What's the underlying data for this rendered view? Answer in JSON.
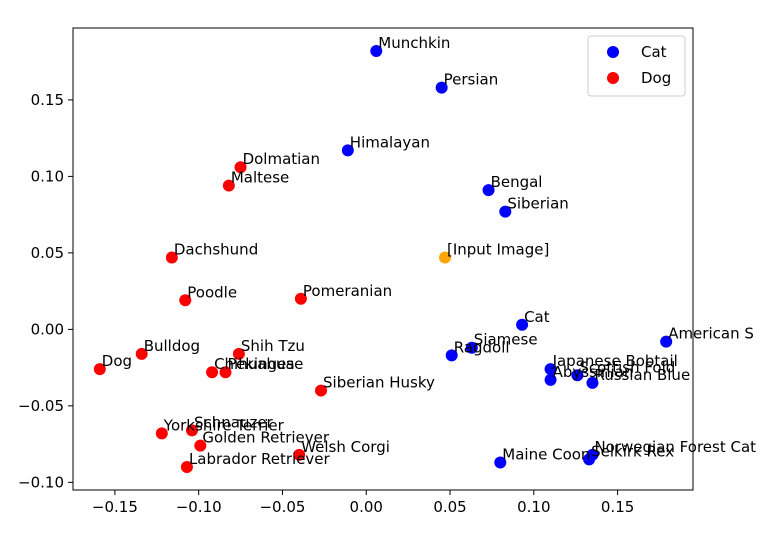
{
  "chart_data": {
    "type": "scatter",
    "title": "",
    "xlabel": "",
    "ylabel": "",
    "xlim": [
      -0.175,
      0.195
    ],
    "ylim": [
      -0.105,
      0.197
    ],
    "xticks": [
      "−0.15",
      "−0.10",
      "−0.05",
      "0.00",
      "0.05",
      "0.10",
      "0.15"
    ],
    "xtick_values": [
      -0.15,
      -0.1,
      -0.05,
      0.0,
      0.05,
      0.1,
      0.15
    ],
    "yticks": [
      "−0.10",
      "−0.05",
      "0.00",
      "0.05",
      "0.10",
      "0.15"
    ],
    "ytick_values": [
      -0.1,
      -0.05,
      0.0,
      0.05,
      0.1,
      0.15
    ],
    "grid": false,
    "legend_position": "top-right",
    "legend": [
      {
        "name": "Cat",
        "color": "#0000ff"
      },
      {
        "name": "Dog",
        "color": "#ff0000"
      }
    ],
    "points": [
      {
        "label": "Munchkin",
        "x": 0.006,
        "y": 0.182,
        "group": "Cat",
        "color": "#0000ff"
      },
      {
        "label": "Persian",
        "x": 0.045,
        "y": 0.158,
        "group": "Cat",
        "color": "#0000ff"
      },
      {
        "label": "Himalayan",
        "x": -0.011,
        "y": 0.117,
        "group": "Cat",
        "color": "#0000ff"
      },
      {
        "label": "Bengal",
        "x": 0.073,
        "y": 0.091,
        "group": "Cat",
        "color": "#0000ff"
      },
      {
        "label": "Siberian",
        "x": 0.083,
        "y": 0.077,
        "group": "Cat",
        "color": "#0000ff"
      },
      {
        "label": "Cat",
        "x": 0.093,
        "y": 0.003,
        "group": "Cat",
        "color": "#0000ff"
      },
      {
        "label": "Siamese",
        "x": 0.063,
        "y": -0.012,
        "group": "Cat",
        "color": "#0000ff"
      },
      {
        "label": "Ragdoll",
        "x": 0.051,
        "y": -0.017,
        "group": "Cat",
        "color": "#0000ff"
      },
      {
        "label": "Japanese Bobtail",
        "x": 0.11,
        "y": -0.026,
        "group": "Cat",
        "color": "#0000ff"
      },
      {
        "label": "Abyssinian",
        "x": 0.11,
        "y": -0.033,
        "group": "Cat",
        "color": "#0000ff"
      },
      {
        "label": "Scottish Fold",
        "x": 0.126,
        "y": -0.03,
        "group": "Cat",
        "color": "#0000ff"
      },
      {
        "label": "Russian Blue",
        "x": 0.135,
        "y": -0.035,
        "group": "Cat",
        "color": "#0000ff"
      },
      {
        "label": "American S",
        "x": 0.179,
        "y": -0.008,
        "group": "Cat",
        "color": "#0000ff"
      },
      {
        "label": "Maine Coon",
        "x": 0.08,
        "y": -0.087,
        "group": "Cat",
        "color": "#0000ff"
      },
      {
        "label": "Selkirk Rex",
        "x": 0.133,
        "y": -0.085,
        "group": "Cat",
        "color": "#0000ff"
      },
      {
        "label": "Norwegian Forest Cat",
        "x": 0.135,
        "y": -0.082,
        "group": "Cat",
        "color": "#0000ff"
      },
      {
        "label": "Dolmatian",
        "x": -0.075,
        "y": 0.106,
        "group": "Dog",
        "color": "#ff0000"
      },
      {
        "label": "Maltese",
        "x": -0.082,
        "y": 0.094,
        "group": "Dog",
        "color": "#ff0000"
      },
      {
        "label": "Dachshund",
        "x": -0.116,
        "y": 0.047,
        "group": "Dog",
        "color": "#ff0000"
      },
      {
        "label": "Poodle",
        "x": -0.108,
        "y": 0.019,
        "group": "Dog",
        "color": "#ff0000"
      },
      {
        "label": "Pomeranian",
        "x": -0.039,
        "y": 0.02,
        "group": "Dog",
        "color": "#ff0000"
      },
      {
        "label": "Bulldog",
        "x": -0.134,
        "y": -0.016,
        "group": "Dog",
        "color": "#ff0000"
      },
      {
        "label": "Shih Tzu",
        "x": -0.076,
        "y": -0.016,
        "group": "Dog",
        "color": "#ff0000"
      },
      {
        "label": "Chihuahua",
        "x": -0.092,
        "y": -0.028,
        "group": "Dog",
        "color": "#ff0000"
      },
      {
        "label": "Pekingese",
        "x": -0.084,
        "y": -0.028,
        "group": "Dog",
        "color": "#ff0000"
      },
      {
        "label": "Dog",
        "x": -0.159,
        "y": -0.026,
        "group": "Dog",
        "color": "#ff0000"
      },
      {
        "label": "Siberian Husky",
        "x": -0.027,
        "y": -0.04,
        "group": "Dog",
        "color": "#ff0000"
      },
      {
        "label": "Schnauzer",
        "x": -0.104,
        "y": -0.066,
        "group": "Dog",
        "color": "#ff0000"
      },
      {
        "label": "Yorkshire Terrier",
        "x": -0.122,
        "y": -0.068,
        "group": "Dog",
        "color": "#ff0000"
      },
      {
        "label": "Golden Retriever",
        "x": -0.099,
        "y": -0.076,
        "group": "Dog",
        "color": "#ff0000"
      },
      {
        "label": "Welsh Corgi",
        "x": -0.04,
        "y": -0.082,
        "group": "Dog",
        "color": "#ff0000"
      },
      {
        "label": "Labrador Retriever",
        "x": -0.107,
        "y": -0.09,
        "group": "Dog",
        "color": "#ff0000"
      },
      {
        "label": "[Input Image]",
        "x": 0.047,
        "y": 0.047,
        "group": "Input",
        "color": "#ffa500"
      }
    ]
  }
}
